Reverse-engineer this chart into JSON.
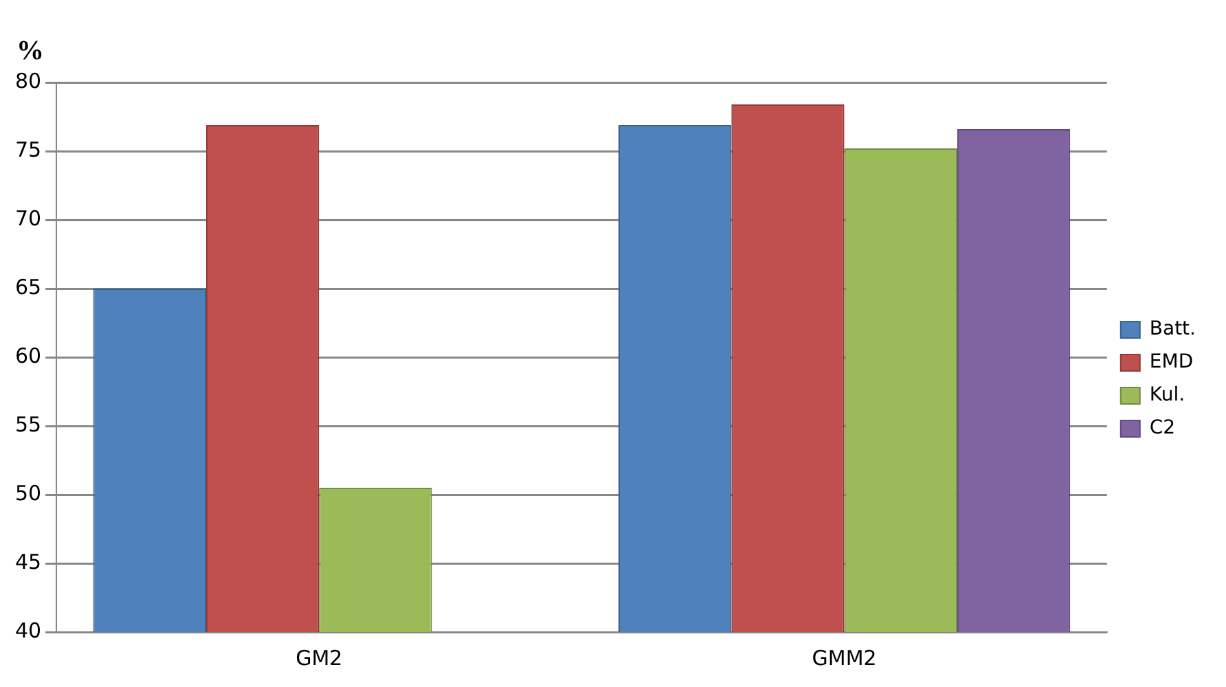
{
  "chart_data": {
    "type": "bar",
    "ylabel": "%",
    "categories": [
      "GM2",
      "GMM2"
    ],
    "series": [
      {
        "name": "Batt.",
        "color": "#4f81bd",
        "values": [
          65.0,
          76.9
        ]
      },
      {
        "name": "EMD",
        "color": "#c0504d",
        "values": [
          76.9,
          78.4
        ]
      },
      {
        "name": "Kul.",
        "color": "#9bbb59",
        "values": [
          50.5,
          75.2
        ]
      },
      {
        "name": "C2",
        "color": "#8064a2",
        "values": [
          null,
          76.6
        ]
      }
    ],
    "ylim": [
      40,
      80
    ],
    "yticks": [
      40,
      45,
      50,
      55,
      60,
      65,
      70,
      75,
      80
    ],
    "grid": "y",
    "legend": "right"
  }
}
